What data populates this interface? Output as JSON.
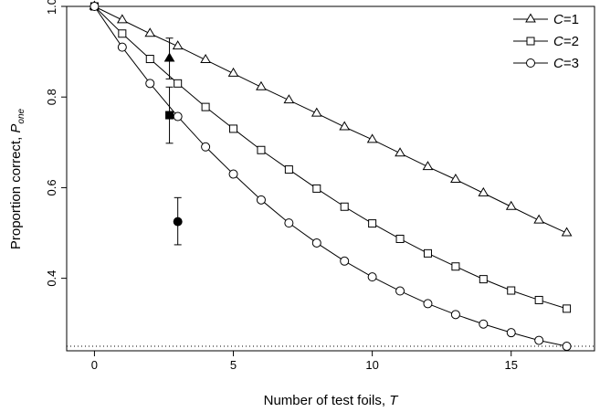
{
  "chart_data": {
    "type": "line",
    "title": "",
    "xlabel_text": "Number of test foils, ",
    "xlabel_var": "T",
    "ylabel_text": "Proportion correct, ",
    "ylabel_var": "P",
    "ylabel_sub": "one",
    "xlim": [
      -1,
      18
    ],
    "ylim": [
      0.24,
      1.0
    ],
    "x_ticks": [
      0,
      5,
      10,
      15
    ],
    "y_ticks": [
      0.4,
      0.6,
      0.8,
      1.0
    ],
    "x_tick_labels": [
      "0",
      "5",
      "10",
      "15"
    ],
    "y_tick_labels": [
      "0.4",
      "0.6",
      "0.8",
      "1.0"
    ],
    "grid": false,
    "legend_position": "top-right",
    "chance_line": 0.25,
    "x": [
      0,
      1,
      2,
      3,
      4,
      5,
      6,
      7,
      8,
      9,
      10,
      11,
      12,
      13,
      14,
      15,
      16,
      17
    ],
    "series": [
      {
        "var": "C",
        "value": "=1",
        "marker": "triangle",
        "values": [
          1.0,
          0.97,
          0.94,
          0.912,
          0.882,
          0.852,
          0.822,
          0.793,
          0.764,
          0.734,
          0.706,
          0.676,
          0.646,
          0.618,
          0.588,
          0.558,
          0.528,
          0.5
        ]
      },
      {
        "var": "C",
        "value": "=2",
        "marker": "square",
        "values": [
          1.0,
          0.94,
          0.884,
          0.83,
          0.778,
          0.73,
          0.683,
          0.64,
          0.598,
          0.558,
          0.521,
          0.487,
          0.455,
          0.426,
          0.398,
          0.373,
          0.352,
          0.333
        ]
      },
      {
        "var": "C",
        "value": "=3",
        "marker": "circle",
        "values": [
          1.0,
          0.91,
          0.83,
          0.757,
          0.69,
          0.63,
          0.573,
          0.522,
          0.478,
          0.438,
          0.403,
          0.372,
          0.344,
          0.32,
          0.299,
          0.28,
          0.263,
          0.25
        ]
      }
    ],
    "observed": [
      {
        "marker": "triangle",
        "x": 2.7,
        "y": 0.885,
        "err_low": 0.84,
        "err_high": 0.93
      },
      {
        "marker": "square",
        "x": 2.7,
        "y": 0.76,
        "err_low": 0.698,
        "err_high": 0.822
      },
      {
        "marker": "circle",
        "x": 3.0,
        "y": 0.525,
        "err_low": 0.474,
        "err_high": 0.578
      }
    ]
  }
}
